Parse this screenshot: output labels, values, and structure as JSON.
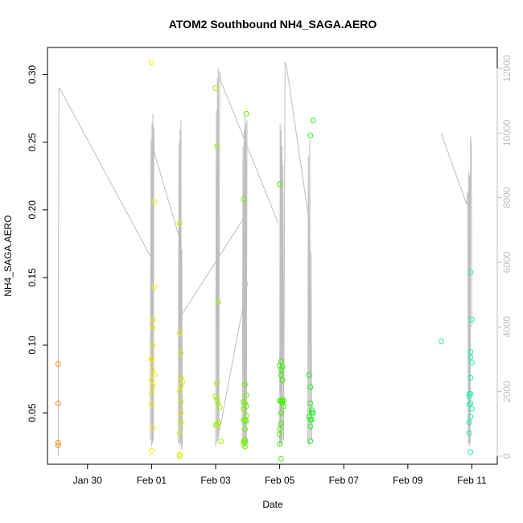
{
  "chart_data": {
    "type": "scatter",
    "title": "ATOM2 Southbound NH4_SAGA.AERO",
    "xlabel": "Date",
    "ylabel": "NH4_SAGA.AERO",
    "y2label": "",
    "x_ticks": [
      "Jan 30",
      "Feb 01",
      "Feb 03",
      "Feb 05",
      "Feb 07",
      "Feb 09",
      "Feb 11"
    ],
    "y_ticks": [
      "0.05",
      "0.10",
      "0.15",
      "0.20",
      "0.25",
      "0.30"
    ],
    "y2_ticks": [
      "0",
      "2000",
      "4000",
      "6000",
      "8000",
      "10000",
      "12000"
    ],
    "xlim": [
      "2017-01-28T18:00",
      "2017-02-11T19:00"
    ],
    "ylim": [
      0.012,
      0.32
    ],
    "y2lim": [
      -250,
      12650
    ],
    "grid": false,
    "colors": {
      "axis": "#000000",
      "secondary_axis": "#bebebe",
      "altitude_line": "#bebebe"
    },
    "series": [
      {
        "color": "#ff8c1a",
        "points": [
          {
            "x": "2017-01-29T02:00",
            "y": 0.086
          },
          {
            "x": "2017-01-29T02:00",
            "y": 0.057
          },
          {
            "x": "2017-01-29T02:00",
            "y": 0.028
          },
          {
            "x": "2017-01-29T02:00",
            "y": 0.026
          }
        ]
      },
      {
        "color": "#f0f000",
        "points": [
          {
            "x": "2017-02-01T00:00",
            "y": 0.309
          },
          {
            "x": "2017-02-01T02:00",
            "y": 0.206
          },
          {
            "x": "2017-02-01T02:00",
            "y": 0.143
          },
          {
            "x": "2017-02-01T01:00",
            "y": 0.119
          },
          {
            "x": "2017-02-01T01:00",
            "y": 0.113
          },
          {
            "x": "2017-02-01T01:00",
            "y": 0.1
          },
          {
            "x": "2017-02-01T00:00",
            "y": 0.09
          },
          {
            "x": "2017-02-01T00:00",
            "y": 0.089
          },
          {
            "x": "2017-02-01T01:00",
            "y": 0.082
          },
          {
            "x": "2017-02-01T02:00",
            "y": 0.078
          },
          {
            "x": "2017-02-01T00:00",
            "y": 0.074
          },
          {
            "x": "2017-02-01T01:00",
            "y": 0.07
          },
          {
            "x": "2017-02-01T00:00",
            "y": 0.065
          },
          {
            "x": "2017-02-01T00:00",
            "y": 0.056
          },
          {
            "x": "2017-02-01T01:00",
            "y": 0.039
          },
          {
            "x": "2017-02-01T00:00",
            "y": 0.022
          }
        ]
      },
      {
        "color": "#d8f000",
        "points": [
          {
            "x": "2017-02-01T21:00",
            "y": 0.19
          },
          {
            "x": "2017-02-01T21:00",
            "y": 0.109
          },
          {
            "x": "2017-02-01T22:00",
            "y": 0.094
          },
          {
            "x": "2017-02-01T22:00",
            "y": 0.076
          },
          {
            "x": "2017-02-01T23:00",
            "y": 0.073
          },
          {
            "x": "2017-02-01T22:00",
            "y": 0.07
          },
          {
            "x": "2017-02-01T21:00",
            "y": 0.066
          },
          {
            "x": "2017-02-01T22:00",
            "y": 0.058
          },
          {
            "x": "2017-02-01T22:00",
            "y": 0.05
          },
          {
            "x": "2017-02-01T22:00",
            "y": 0.043
          },
          {
            "x": "2017-02-01T21:00",
            "y": 0.035
          },
          {
            "x": "2017-02-01T21:00",
            "y": 0.019
          },
          {
            "x": "2017-02-01T21:00",
            "y": 0.018
          }
        ]
      },
      {
        "color": "#a0f000",
        "points": [
          {
            "x": "2017-02-03T00:00",
            "y": 0.29
          },
          {
            "x": "2017-02-03T01:00",
            "y": 0.247
          },
          {
            "x": "2017-02-03T02:00",
            "y": 0.132
          },
          {
            "x": "2017-02-03T01:00",
            "y": 0.072
          },
          {
            "x": "2017-02-03T00:00",
            "y": 0.062
          },
          {
            "x": "2017-02-03T01:00",
            "y": 0.06
          },
          {
            "x": "2017-02-03T02:00",
            "y": 0.057
          },
          {
            "x": "2017-02-03T03:00",
            "y": 0.054
          },
          {
            "x": "2017-02-03T02:00",
            "y": 0.043
          },
          {
            "x": "2017-02-03T00:00",
            "y": 0.041
          },
          {
            "x": "2017-02-03T01:00",
            "y": 0.041
          },
          {
            "x": "2017-02-03T04:00",
            "y": 0.029
          }
        ]
      },
      {
        "color": "#70f000",
        "points": [
          {
            "x": "2017-02-03T23:00",
            "y": 0.271
          },
          {
            "x": "2017-02-03T21:00",
            "y": 0.208
          },
          {
            "x": "2017-02-03T22:00",
            "y": 0.071
          },
          {
            "x": "2017-02-03T23:00",
            "y": 0.063
          },
          {
            "x": "2017-02-03T21:00",
            "y": 0.058
          },
          {
            "x": "2017-02-03T22:00",
            "y": 0.057
          },
          {
            "x": "2017-02-03T23:00",
            "y": 0.055
          },
          {
            "x": "2017-02-03T21:00",
            "y": 0.053
          },
          {
            "x": "2017-02-03T23:00",
            "y": 0.048
          },
          {
            "x": "2017-02-03T21:00",
            "y": 0.045
          },
          {
            "x": "2017-02-03T22:00",
            "y": 0.044
          },
          {
            "x": "2017-02-03T23:00",
            "y": 0.044
          },
          {
            "x": "2017-02-03T22:00",
            "y": 0.038
          },
          {
            "x": "2017-02-03T22:00",
            "y": 0.03
          },
          {
            "x": "2017-02-03T21:00",
            "y": 0.029
          },
          {
            "x": "2017-02-03T22:00",
            "y": 0.028
          },
          {
            "x": "2017-02-03T21:00",
            "y": 0.027
          },
          {
            "x": "2017-02-03T22:00",
            "y": 0.025
          }
        ]
      },
      {
        "color": "#40f000",
        "points": [
          {
            "x": "2017-02-05T00:00",
            "y": 0.219
          },
          {
            "x": "2017-02-05T01:00",
            "y": 0.088
          },
          {
            "x": "2017-02-05T00:00",
            "y": 0.085
          },
          {
            "x": "2017-02-05T02:00",
            "y": 0.084
          },
          {
            "x": "2017-02-05T01:00",
            "y": 0.082
          },
          {
            "x": "2017-02-05T01:00",
            "y": 0.078
          },
          {
            "x": "2017-02-05T02:00",
            "y": 0.074
          },
          {
            "x": "2017-02-05T00:00",
            "y": 0.059
          },
          {
            "x": "2017-02-05T01:00",
            "y": 0.059
          },
          {
            "x": "2017-02-05T02:00",
            "y": 0.059
          },
          {
            "x": "2017-02-05T03:00",
            "y": 0.059
          },
          {
            "x": "2017-02-05T02:00",
            "y": 0.057
          },
          {
            "x": "2017-02-05T03:00",
            "y": 0.055
          },
          {
            "x": "2017-02-05T01:00",
            "y": 0.05
          },
          {
            "x": "2017-02-05T01:00",
            "y": 0.042
          },
          {
            "x": "2017-02-05T00:00",
            "y": 0.038
          },
          {
            "x": "2017-02-05T00:00",
            "y": 0.034
          },
          {
            "x": "2017-02-05T00:00",
            "y": 0.027
          },
          {
            "x": "2017-02-05T01:00",
            "y": 0.016
          }
        ]
      },
      {
        "color": "#20f020",
        "points": [
          {
            "x": "2017-02-06T01:00",
            "y": 0.266
          },
          {
            "x": "2017-02-05T23:00",
            "y": 0.255
          },
          {
            "x": "2017-02-05T22:00",
            "y": 0.078
          },
          {
            "x": "2017-02-05T23:00",
            "y": 0.069
          },
          {
            "x": "2017-02-05T23:00",
            "y": 0.057
          },
          {
            "x": "2017-02-06T00:00",
            "y": 0.052
          },
          {
            "x": "2017-02-06T00:00",
            "y": 0.05
          },
          {
            "x": "2017-02-06T01:00",
            "y": 0.05
          },
          {
            "x": "2017-02-05T22:00",
            "y": 0.047
          },
          {
            "x": "2017-02-05T23:00",
            "y": 0.045
          },
          {
            "x": "2017-02-06T00:00",
            "y": 0.045
          },
          {
            "x": "2017-02-05T23:00",
            "y": 0.04
          },
          {
            "x": "2017-02-05T23:00",
            "y": 0.029
          }
        ]
      },
      {
        "color": "#20f090",
        "points": [
          {
            "x": "2017-02-10T01:00",
            "y": 0.103
          }
        ]
      },
      {
        "color": "#20f0b0",
        "points": [
          {
            "x": "2017-02-10T23:00",
            "y": 0.154
          },
          {
            "x": "2017-02-11T00:00",
            "y": 0.119
          },
          {
            "x": "2017-02-10T23:00",
            "y": 0.095
          },
          {
            "x": "2017-02-10T23:00",
            "y": 0.091
          },
          {
            "x": "2017-02-11T00:00",
            "y": 0.087
          },
          {
            "x": "2017-02-10T23:00",
            "y": 0.076
          },
          {
            "x": "2017-02-10T22:00",
            "y": 0.064
          },
          {
            "x": "2017-02-10T23:00",
            "y": 0.064
          },
          {
            "x": "2017-02-10T22:00",
            "y": 0.062
          },
          {
            "x": "2017-02-10T23:00",
            "y": 0.057
          },
          {
            "x": "2017-02-10T22:00",
            "y": 0.056
          },
          {
            "x": "2017-02-11T00:00",
            "y": 0.053
          },
          {
            "x": "2017-02-10T23:00",
            "y": 0.047
          },
          {
            "x": "2017-02-10T22:00",
            "y": 0.043
          },
          {
            "x": "2017-02-10T22:00",
            "y": 0.035
          },
          {
            "x": "2017-02-10T23:00",
            "y": 0.021
          }
        ]
      }
    ],
    "secondary_line": {
      "axis": "right",
      "color": "#bebebe",
      "segments": [
        [
          {
            "x": "2017-01-29T02:00",
            "y": 0
          },
          {
            "x": "2017-01-29T02:30",
            "y": 11300
          },
          {
            "x": "2017-01-29T03:00",
            "y": 11400
          },
          {
            "x": "2017-01-31T23:00",
            "y": 6200
          }
        ],
        [
          {
            "x": "2017-01-31T23:00",
            "y": 500
          },
          {
            "x": "2017-01-31T23:30",
            "y": 9800
          },
          {
            "x": "2017-02-01T00:00",
            "y": 300
          },
          {
            "x": "2017-02-01T00:20",
            "y": 10300
          },
          {
            "x": "2017-02-01T00:40",
            "y": 400
          },
          {
            "x": "2017-02-01T01:00",
            "y": 10600
          },
          {
            "x": "2017-02-01T01:20",
            "y": 500
          },
          {
            "x": "2017-02-01T01:40",
            "y": 10200
          },
          {
            "x": "2017-02-01T02:00",
            "y": 9400
          },
          {
            "x": "2017-02-01T22:00",
            "y": 6600
          }
        ],
        [
          {
            "x": "2017-02-01T20:00",
            "y": 400
          },
          {
            "x": "2017-02-01T20:30",
            "y": 9700
          },
          {
            "x": "2017-02-01T21:00",
            "y": 300
          },
          {
            "x": "2017-02-01T21:20",
            "y": 10100
          },
          {
            "x": "2017-02-01T21:40",
            "y": 400
          },
          {
            "x": "2017-02-01T22:00",
            "y": 10400
          },
          {
            "x": "2017-02-01T22:20",
            "y": 200
          },
          {
            "x": "2017-02-01T22:40",
            "y": 6400
          },
          {
            "x": "2017-02-01T23:00",
            "y": 300
          }
        ],
        [
          {
            "x": "2017-02-01T23:00",
            "y": 4400
          },
          {
            "x": "2017-02-03T20:00",
            "y": 7300
          }
        ],
        [
          {
            "x": "2017-02-03T00:00",
            "y": 300
          },
          {
            "x": "2017-02-03T00:30",
            "y": 10700
          },
          {
            "x": "2017-02-03T01:00",
            "y": 400
          },
          {
            "x": "2017-02-03T01:20",
            "y": 11700
          },
          {
            "x": "2017-02-03T01:40",
            "y": 500
          },
          {
            "x": "2017-02-03T02:00",
            "y": 12000
          },
          {
            "x": "2017-02-03T02:20",
            "y": 600
          },
          {
            "x": "2017-02-03T03:00",
            "y": 11900
          },
          {
            "x": "2017-02-03T04:00",
            "y": 11600
          },
          {
            "x": "2017-02-04T23:00",
            "y": 7200
          }
        ],
        [
          {
            "x": "2017-02-03T03:00",
            "y": 800
          },
          {
            "x": "2017-02-04T00:00",
            "y": 5400
          }
        ],
        [
          {
            "x": "2017-02-03T20:00",
            "y": 400
          },
          {
            "x": "2017-02-03T20:30",
            "y": 9600
          },
          {
            "x": "2017-02-03T21:00",
            "y": 300
          },
          {
            "x": "2017-02-03T21:20",
            "y": 10100
          },
          {
            "x": "2017-02-03T21:40",
            "y": 400
          },
          {
            "x": "2017-02-03T22:00",
            "y": 10500
          },
          {
            "x": "2017-02-03T22:20",
            "y": 300
          },
          {
            "x": "2017-02-03T22:40",
            "y": 10300
          },
          {
            "x": "2017-02-03T23:00",
            "y": 400
          },
          {
            "x": "2017-02-03T23:30",
            "y": 10400
          }
        ],
        [
          {
            "x": "2017-02-05T00:00",
            "y": 300
          },
          {
            "x": "2017-02-05T00:20",
            "y": 10300
          },
          {
            "x": "2017-02-05T00:40",
            "y": 400
          },
          {
            "x": "2017-02-05T01:00",
            "y": 10100
          },
          {
            "x": "2017-02-05T01:20",
            "y": 300
          },
          {
            "x": "2017-02-05T01:40",
            "y": 9600
          },
          {
            "x": "2017-02-05T02:00",
            "y": 400
          },
          {
            "x": "2017-02-05T02:30",
            "y": 9000
          },
          {
            "x": "2017-02-05T03:00",
            "y": 500
          },
          {
            "x": "2017-02-05T04:00",
            "y": 12200
          },
          {
            "x": "2017-02-05T05:00",
            "y": 12100
          },
          {
            "x": "2017-02-05T23:00",
            "y": 7000
          }
        ],
        [
          {
            "x": "2017-02-05T21:00",
            "y": 400
          },
          {
            "x": "2017-02-05T21:30",
            "y": 9300
          },
          {
            "x": "2017-02-05T22:00",
            "y": 300
          },
          {
            "x": "2017-02-05T22:30",
            "y": 9800
          },
          {
            "x": "2017-02-05T23:00",
            "y": 400
          },
          {
            "x": "2017-02-05T23:30",
            "y": 6300
          },
          {
            "x": "2017-02-06T00:00",
            "y": 500
          }
        ],
        [
          {
            "x": "2017-02-10T01:00",
            "y": 10000
          },
          {
            "x": "2017-02-10T20:00",
            "y": 7800
          },
          {
            "x": "2017-02-10T21:00",
            "y": 8200
          },
          {
            "x": "2017-02-10T21:20",
            "y": 400
          },
          {
            "x": "2017-02-10T21:40",
            "y": 8800
          },
          {
            "x": "2017-02-10T22:00",
            "y": 300
          },
          {
            "x": "2017-02-10T22:20",
            "y": 8700
          },
          {
            "x": "2017-02-10T22:40",
            "y": 400
          },
          {
            "x": "2017-02-10T23:00",
            "y": 9900
          },
          {
            "x": "2017-02-10T23:30",
            "y": 9600
          },
          {
            "x": "2017-02-11T00:00",
            "y": 4000
          }
        ]
      ]
    }
  }
}
